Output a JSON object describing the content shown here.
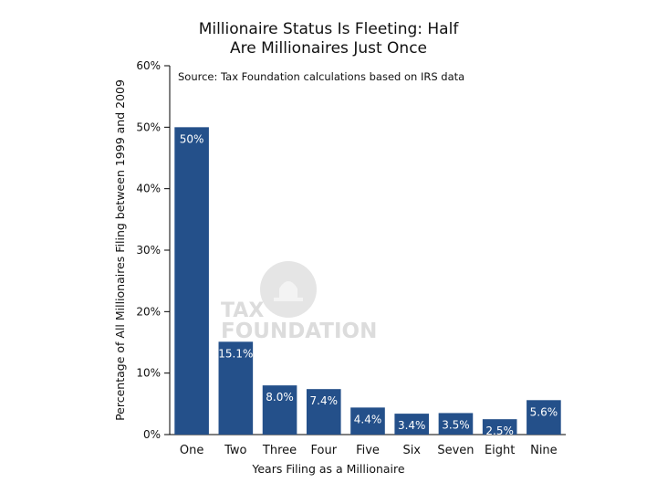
{
  "chart_data": {
    "type": "bar",
    "title_lines": [
      "Millionaire Status Is Fleeting: Half",
      "Are Millionaires Just Once"
    ],
    "source": "Source: Tax Foundation calculations based on IRS data",
    "xlabel": "Years Filing as a Millionaire",
    "ylabel": "Percentage of All Millionaires Filing between 1999 and 2009",
    "categories": [
      "One",
      "Two",
      "Three",
      "Four",
      "Five",
      "Six",
      "Seven",
      "Eight",
      "Nine"
    ],
    "values": [
      50,
      15.1,
      8.0,
      7.4,
      4.4,
      3.4,
      3.5,
      2.5,
      5.6
    ],
    "value_labels": [
      "50%",
      "15.1%",
      "8.0%",
      "7.4%",
      "4.4%",
      "3.4%",
      "3.5%",
      "2.5%",
      "5.6%"
    ],
    "ylim": [
      0,
      60
    ],
    "yticks": [
      0,
      10,
      20,
      30,
      40,
      50,
      60
    ],
    "ytick_labels": [
      "0%",
      "10%",
      "20%",
      "30%",
      "40%",
      "50%",
      "60%"
    ],
    "bar_color": "#24508a"
  },
  "watermark": {
    "line1": "TAX",
    "line2": "FOUNDATION"
  }
}
